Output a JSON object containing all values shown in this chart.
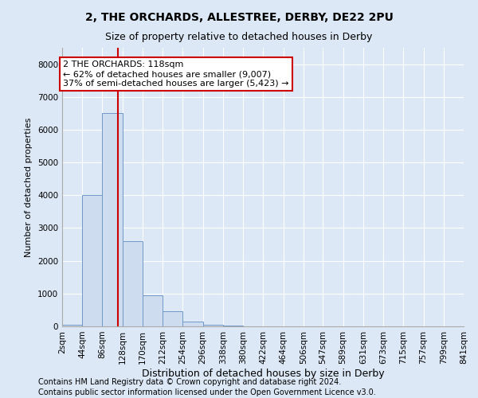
{
  "title1": "2, THE ORCHARDS, ALLESTREE, DERBY, DE22 2PU",
  "title2": "Size of property relative to detached houses in Derby",
  "xlabel": "Distribution of detached houses by size in Derby",
  "ylabel": "Number of detached properties",
  "bin_edges": [
    2,
    44,
    86,
    128,
    170,
    212,
    254,
    296,
    338,
    380,
    422,
    464,
    506,
    547,
    589,
    631,
    673,
    715,
    757,
    799,
    841
  ],
  "bin_labels": [
    "2sqm",
    "44sqm",
    "86sqm",
    "128sqm",
    "170sqm",
    "212sqm",
    "254sqm",
    "296sqm",
    "338sqm",
    "380sqm",
    "422sqm",
    "464sqm",
    "506sqm",
    "547sqm",
    "589sqm",
    "631sqm",
    "673sqm",
    "715sqm",
    "757sqm",
    "799sqm",
    "841sqm"
  ],
  "bar_heights": [
    60,
    4000,
    6500,
    2600,
    950,
    450,
    150,
    50,
    20,
    5,
    2,
    1,
    0,
    0,
    0,
    0,
    0,
    0,
    0,
    0
  ],
  "bar_color": "#cddcee",
  "bar_edgecolor": "#7098c8",
  "property_size": 118,
  "annotation_line1": "2 THE ORCHARDS: 118sqm",
  "annotation_line2": "← 62% of detached houses are smaller (9,007)",
  "annotation_line3": "37% of semi-detached houses are larger (5,423) →",
  "annotation_box_color": "#ffffff",
  "annotation_box_edgecolor": "#cc0000",
  "ylim": [
    0,
    8500
  ],
  "yticks": [
    0,
    1000,
    2000,
    3000,
    4000,
    5000,
    6000,
    7000,
    8000
  ],
  "background_color": "#dce8f5",
  "plot_bg_color": "#dce8f5",
  "footer1": "Contains HM Land Registry data © Crown copyright and database right 2024.",
  "footer2": "Contains public sector information licensed under the Open Government Licence v3.0.",
  "title1_fontsize": 10,
  "title2_fontsize": 9,
  "xlabel_fontsize": 9,
  "ylabel_fontsize": 8,
  "tick_fontsize": 7.5,
  "annotation_fontsize": 8,
  "footer_fontsize": 7
}
